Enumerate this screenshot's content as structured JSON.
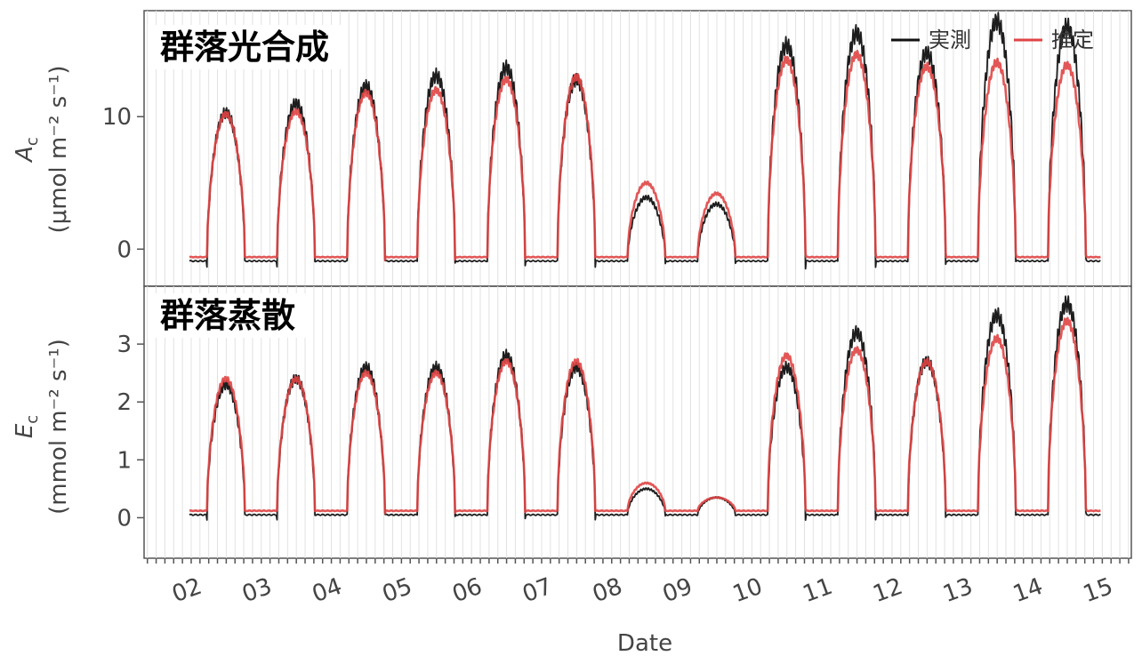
{
  "chart_data": [
    {
      "type": "line",
      "panel_title": "群落光合成",
      "ylabel_symbol": "A",
      "ylabel_subscript": "c",
      "ylabel_unit": "(μmol m⁻² s⁻¹)",
      "yticks": [
        "0",
        "10"
      ],
      "ytick_values": [
        0,
        10
      ],
      "ylim": [
        -2.8,
        18
      ],
      "legend": {
        "position": "top-right",
        "entries": [
          "実測",
          "推定"
        ]
      },
      "series": [
        {
          "name": "実測",
          "color": "#111111",
          "baseline": -0.9,
          "daily_peaks": [
            10.3,
            11.0,
            12.3,
            13.1,
            13.7,
            12.8,
            3.9,
            3.4,
            15.4,
            16.3,
            14.8,
            17.2,
            16.8
          ]
        },
        {
          "name": "推定",
          "color": "#e04545",
          "baseline": -0.6,
          "daily_peaks": [
            10.2,
            10.4,
            11.8,
            12.0,
            12.8,
            13.0,
            5.0,
            4.2,
            14.3,
            14.7,
            13.8,
            14.1,
            13.9
          ]
        }
      ]
    },
    {
      "type": "line",
      "panel_title": "群落蒸散",
      "ylabel_symbol": "E",
      "ylabel_subscript": "c",
      "ylabel_unit": "(mmol m⁻² s⁻¹)",
      "yticks": [
        "0",
        "1",
        "2",
        "3"
      ],
      "ytick_values": [
        0,
        1,
        2,
        3
      ],
      "ylim": [
        -0.7,
        4.0
      ],
      "series": [
        {
          "name": "実測",
          "color": "#111111",
          "baseline": 0.05,
          "daily_peaks": [
            2.3,
            2.4,
            2.6,
            2.6,
            2.8,
            2.6,
            0.5,
            0.35,
            2.6,
            3.2,
            2.7,
            3.5,
            3.7
          ]
        },
        {
          "name": "推定",
          "color": "#e04545",
          "baseline": 0.12,
          "daily_peaks": [
            2.4,
            2.4,
            2.5,
            2.5,
            2.7,
            2.7,
            0.6,
            0.35,
            2.8,
            2.9,
            2.7,
            3.1,
            3.4
          ]
        }
      ]
    }
  ],
  "xaxis": {
    "label": "Date",
    "ticks": [
      "02",
      "03",
      "04",
      "05",
      "06",
      "07",
      "08",
      "09",
      "10",
      "11",
      "12",
      "13",
      "14",
      "15"
    ]
  }
}
